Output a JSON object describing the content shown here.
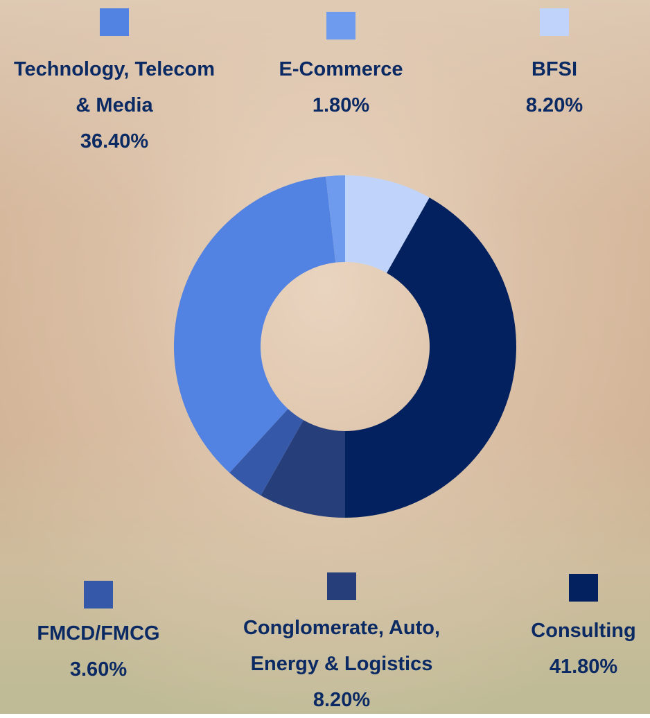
{
  "chart_data": {
    "type": "donut",
    "categories": [
      "BFSI",
      "Consulting",
      "Conglomerate, Auto, Energy & Logistics",
      "FMCD/FMCG",
      "Technology, Telecom & Media",
      "E-Commerce"
    ],
    "values": [
      8.2,
      41.8,
      8.2,
      3.6,
      36.4,
      1.8
    ],
    "value_labels": [
      "8.20%",
      "41.80%",
      "8.20%",
      "3.60%",
      "36.40%",
      "1.80%"
    ],
    "colors": [
      "#c0d4fb",
      "#03215e",
      "#263f7a",
      "#3558a8",
      "#5282e2",
      "#6e9bee"
    ]
  }
}
